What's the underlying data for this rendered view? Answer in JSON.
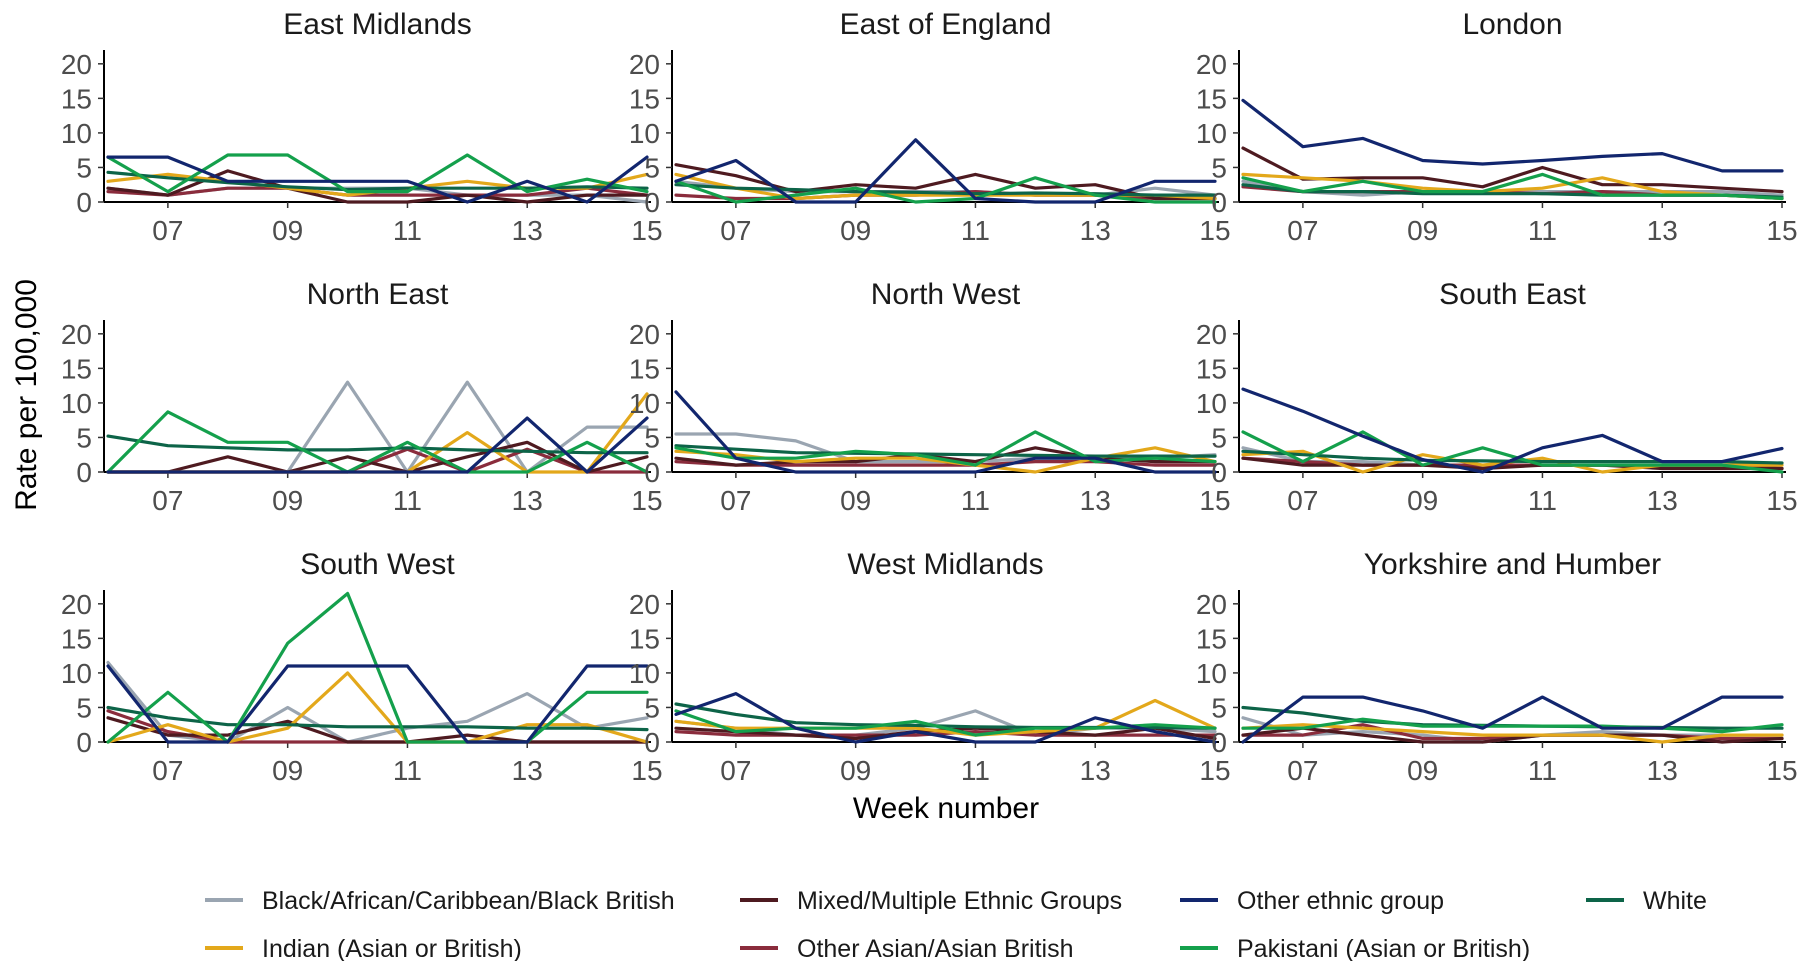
{
  "chart_data": {
    "type": "line",
    "xlabel": "Week number",
    "ylabel": "Rate per 100,000",
    "ylim": [
      0,
      22
    ],
    "xlim": [
      6,
      15
    ],
    "y_ticks": [
      "0",
      "5",
      "10",
      "15",
      "20"
    ],
    "x_ticks": [
      "07",
      "09",
      "11",
      "13",
      "15"
    ],
    "x_tick_values": [
      7,
      9,
      11,
      13,
      15
    ],
    "y_tick_values": [
      0,
      5,
      10,
      15,
      20
    ],
    "weeks": [
      6,
      7,
      8,
      9,
      10,
      11,
      12,
      13,
      14,
      15
    ],
    "grid": false,
    "legend_position": "bottom",
    "legend": [
      {
        "key": "black",
        "name": "Black/African/Caribbean/Black British",
        "color": "#9aa5b1"
      },
      {
        "key": "indian",
        "name": "Indian (Asian or British)",
        "color": "#e3a81b"
      },
      {
        "key": "mixed",
        "name": "Mixed/Multiple Ethnic Groups",
        "color": "#4e1a20"
      },
      {
        "key": "otherasian",
        "name": "Other Asian/Asian British",
        "color": "#8a2c3c"
      },
      {
        "key": "other",
        "name": "Other ethnic group",
        "color": "#12266e"
      },
      {
        "key": "pakistani",
        "name": "Pakistani (Asian or British)",
        "color": "#14a04c"
      },
      {
        "key": "white",
        "name": "White",
        "color": "#0d6448"
      }
    ],
    "panels": [
      {
        "title": "East Midlands",
        "series": {
          "black": [
            2,
            1,
            2,
            2,
            2,
            2,
            1,
            1,
            1,
            0
          ],
          "indian": [
            3,
            4,
            3,
            2,
            1,
            2,
            3,
            2,
            2,
            4
          ],
          "mixed": [
            2,
            1,
            4.5,
            2,
            0,
            0,
            1,
            0,
            1,
            1
          ],
          "otherasian": [
            1.5,
            1,
            2,
            2,
            1,
            1,
            1,
            1,
            2,
            1
          ],
          "other": [
            6.5,
            6.5,
            3,
            3,
            3,
            3,
            0,
            3,
            0,
            6.5
          ],
          "pakistani": [
            6.5,
            1.5,
            6.8,
            6.8,
            1.5,
            1.5,
            6.8,
            1.5,
            3.3,
            1.5
          ],
          "white": [
            4.3,
            3.5,
            2.8,
            2.2,
            1.8,
            2,
            2,
            2,
            2.2,
            2
          ]
        }
      },
      {
        "title": "East of England",
        "series": {
          "black": [
            3,
            2,
            1.5,
            1.5,
            1.5,
            1.5,
            1,
            1,
            2,
            1
          ],
          "indian": [
            4,
            2,
            0.5,
            1,
            1,
            1,
            1,
            1,
            1,
            0.5
          ],
          "mixed": [
            5.4,
            3.8,
            1.5,
            2.5,
            2,
            4,
            2,
            2.5,
            0.5,
            0.5
          ],
          "otherasian": [
            1,
            0.5,
            0.5,
            1,
            1,
            1.5,
            1,
            1,
            0.5,
            0.5
          ],
          "other": [
            3,
            6,
            0,
            0,
            9,
            0.5,
            0,
            0,
            3,
            3
          ],
          "pakistani": [
            3,
            0,
            1,
            2,
            0,
            0.5,
            3.5,
            1,
            0,
            0
          ],
          "white": [
            2.5,
            2,
            1.8,
            1.5,
            1.4,
            1.2,
            1.3,
            1.2,
            1,
            1
          ]
        }
      },
      {
        "title": "London",
        "series": {
          "black": [
            3,
            1.5,
            1,
            1.5,
            1.5,
            1.5,
            1.5,
            1.5,
            1.5,
            1
          ],
          "indian": [
            4,
            3.5,
            3,
            2,
            1.5,
            2,
            3.5,
            1.5,
            1,
            0.5
          ],
          "mixed": [
            7.8,
            3.3,
            3.5,
            3.5,
            2.2,
            5,
            2.5,
            2.5,
            2,
            1.5
          ],
          "otherasian": [
            2.2,
            1.5,
            1.5,
            1.5,
            1.5,
            1.2,
            1.5,
            1,
            1,
            0.5
          ],
          "other": [
            14.7,
            8,
            9.2,
            6,
            5.5,
            6,
            6.6,
            7,
            4.5,
            4.5
          ],
          "pakistani": [
            3.5,
            1.5,
            3,
            1.5,
            1.5,
            4,
            1,
            1,
            1,
            0.5
          ],
          "white": [
            2.5,
            1.5,
            1.5,
            1.2,
            1.2,
            1.2,
            1,
            1,
            1,
            0.7
          ]
        }
      },
      {
        "title": "North East",
        "series": {
          "black": [
            0,
            0,
            0,
            0,
            13,
            0,
            13,
            0,
            6.5,
            6.5
          ],
          "indian": [
            0,
            0,
            0,
            0,
            0,
            0,
            5.7,
            0,
            0,
            11.3
          ],
          "mixed": [
            0,
            0,
            2.2,
            0,
            2.2,
            0,
            2.2,
            4.3,
            0,
            2.2
          ],
          "otherasian": [
            0,
            0,
            0,
            0,
            0,
            3.3,
            0,
            3.3,
            0,
            0
          ],
          "other": [
            0,
            0,
            0,
            0,
            0,
            0,
            0,
            7.8,
            0,
            7.8
          ],
          "pakistani": [
            0,
            8.7,
            4.3,
            4.3,
            0,
            4.3,
            0,
            0,
            4.3,
            0
          ],
          "white": [
            5.2,
            3.8,
            3.5,
            3.2,
            3.2,
            3.5,
            3.2,
            3,
            2.8,
            2.8
          ]
        }
      },
      {
        "title": "North West",
        "series": {
          "black": [
            5.5,
            5.5,
            4.5,
            1.5,
            1.5,
            1.5,
            2,
            2,
            2,
            2.5
          ],
          "indian": [
            3,
            2.5,
            1.5,
            2,
            2,
            1,
            0,
            2,
            3.5,
            1.5
          ],
          "mixed": [
            2,
            1,
            1.5,
            1.5,
            2.5,
            1.5,
            3.5,
            2,
            1.5,
            1.5
          ],
          "otherasian": [
            1.5,
            1,
            1,
            1,
            1,
            1,
            1.5,
            1.5,
            1,
            1
          ],
          "other": [
            11.6,
            2,
            0,
            0,
            0,
            0,
            2,
            2,
            0,
            0
          ],
          "pakistani": [
            3.5,
            2,
            2,
            3,
            2.5,
            1,
            5.8,
            1.5,
            2,
            1.5
          ],
          "white": [
            3.8,
            3.3,
            2.8,
            2.7,
            2.6,
            2.5,
            2.4,
            2.3,
            2.3,
            2.3
          ]
        }
      },
      {
        "title": "South East",
        "series": {
          "black": [
            3.5,
            1.5,
            1.5,
            1,
            1,
            1,
            1,
            1,
            1,
            0.5
          ],
          "indian": [
            2.5,
            3,
            0,
            2.5,
            1,
            2,
            0,
            1,
            1,
            1
          ],
          "mixed": [
            2,
            1,
            1,
            1,
            0.5,
            1,
            1,
            0.5,
            0.5,
            0.5
          ],
          "otherasian": [
            2,
            1.5,
            1,
            1,
            1,
            1,
            1,
            1,
            1,
            0.5
          ],
          "other": [
            12,
            8.8,
            5.2,
            1.8,
            0,
            3.5,
            5.3,
            1.5,
            1.5,
            3.4
          ],
          "pakistani": [
            5.8,
            1.5,
            5.8,
            1,
            3.5,
            1,
            1,
            1,
            1,
            0
          ],
          "white": [
            3,
            2.5,
            2,
            1.7,
            1.6,
            1.5,
            1.5,
            1.5,
            1.5,
            1.3
          ]
        }
      },
      {
        "title": "South West",
        "series": {
          "black": [
            11.5,
            1,
            0,
            5,
            0,
            2,
            3,
            7,
            2,
            3.5
          ],
          "indian": [
            0,
            2.5,
            0,
            2,
            10,
            0,
            0,
            2.5,
            2.5,
            0
          ],
          "mixed": [
            3.5,
            1,
            1,
            3,
            0,
            0,
            1,
            0,
            0,
            0
          ],
          "otherasian": [
            4.5,
            1.5,
            0,
            0,
            0,
            0,
            0,
            0,
            0,
            0
          ],
          "other": [
            11,
            0,
            0,
            11,
            11,
            11,
            0,
            0,
            11,
            11
          ],
          "pakistani": [
            0,
            7.2,
            0,
            14.3,
            21.5,
            0,
            0,
            0,
            7.2,
            7.2
          ],
          "white": [
            5,
            3.5,
            2.5,
            2.5,
            2.2,
            2.2,
            2.2,
            2,
            2,
            1.8
          ]
        }
      },
      {
        "title": "West Midlands",
        "series": {
          "black": [
            3,
            2,
            1,
            1,
            2,
            4.5,
            1,
            2,
            2,
            1.5
          ],
          "indian": [
            3,
            2,
            2,
            2,
            2,
            1,
            1.5,
            2,
            6,
            2
          ],
          "mixed": [
            2,
            1.5,
            1,
            0.5,
            1.5,
            2,
            1.5,
            1,
            2,
            0.5
          ],
          "otherasian": [
            1.5,
            1,
            1,
            1,
            1,
            1.5,
            1,
            1,
            1,
            1
          ],
          "other": [
            4,
            7,
            2,
            0,
            1.5,
            0,
            0,
            3.5,
            1.5,
            0
          ],
          "pakistani": [
            4.5,
            1.5,
            2,
            2,
            3,
            1,
            2,
            2,
            2.5,
            2
          ],
          "white": [
            5.5,
            4,
            2.8,
            2.5,
            2.4,
            2.2,
            2.1,
            2.1,
            2.1,
            2
          ]
        }
      },
      {
        "title": "Yorkshire and Humber",
        "series": {
          "black": [
            3.5,
            1,
            1.5,
            1,
            0,
            1,
            1.5,
            1,
            1,
            1
          ],
          "indian": [
            2,
            2.5,
            2,
            1.5,
            1,
            1,
            1,
            0,
            1,
            1
          ],
          "mixed": [
            1,
            2,
            1,
            0,
            0,
            1,
            1,
            1,
            0,
            0.5
          ],
          "otherasian": [
            1,
            1,
            2.5,
            0.5,
            0.5,
            1,
            1,
            1,
            0.5,
            0.5
          ],
          "other": [
            0,
            6.5,
            6.5,
            4.5,
            2,
            6.5,
            2,
            2,
            6.5,
            6.5
          ],
          "pakistani": [
            2,
            2,
            3.3,
            2.3,
            2.3,
            2.3,
            2.3,
            2,
            1.5,
            2.5
          ],
          "white": [
            5,
            4.2,
            3,
            2.5,
            2.4,
            2.3,
            2.2,
            2.1,
            2,
            2
          ]
        }
      }
    ]
  }
}
